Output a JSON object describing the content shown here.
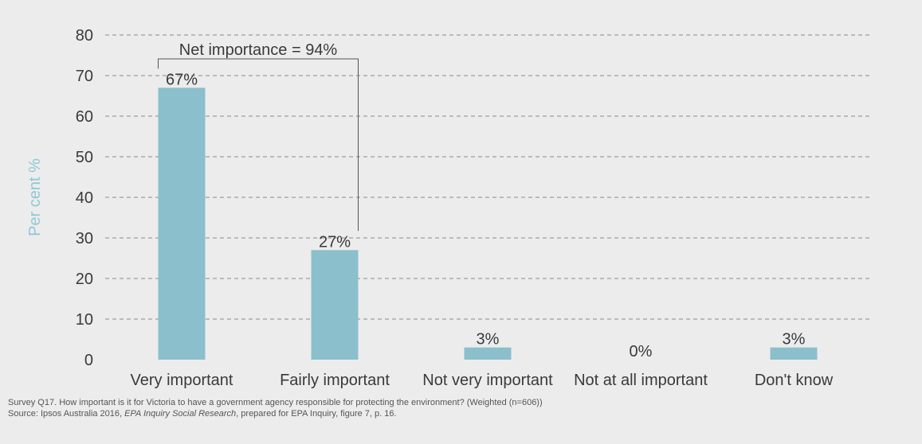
{
  "chart_data": {
    "type": "bar",
    "categories": [
      "Very important",
      "Fairly important",
      "Not very important",
      "Not at all important",
      "Don't know"
    ],
    "values": [
      67,
      27,
      3,
      0,
      3
    ],
    "data_labels": [
      "67%",
      "27%",
      "3%",
      "0%",
      "3%"
    ],
    "ylabel": "Per cent %",
    "ylim": [
      0,
      80
    ],
    "yticks": [
      0,
      10,
      20,
      30,
      40,
      50,
      60,
      70,
      80
    ],
    "grid": true,
    "annotation": {
      "text": "Net importance = 94%",
      "spans": [
        "Very important",
        "Fairly important"
      ]
    },
    "colors": {
      "bar": "#8bbfcc",
      "ylabel": "#8fc9d6",
      "grid": "#8a8a8a",
      "background": "#ececec"
    }
  },
  "footer": {
    "note": "Survey Q17.  How important is it for Victoria to have a government agency responsible for protecting the environment? (Weighted (n=606))",
    "source_prefix": "Source: Ipsos Australia 2016, ",
    "source_title": "EPA Inquiry Social Research",
    "source_suffix": ", prepared for EPA Inquiry, figure 7, p. 16."
  }
}
